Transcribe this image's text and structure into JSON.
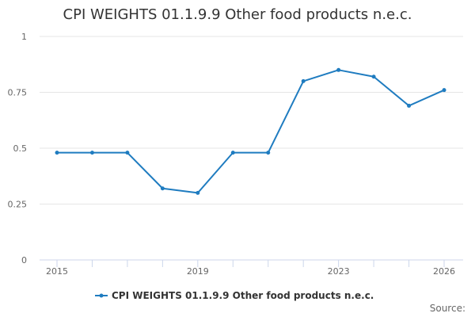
{
  "title": "CPI WEIGHTS 01.1.9.9 Other food products n.e.c.",
  "legend": {
    "label": "CPI WEIGHTS 01.1.9.9 Other food products n.e.c.",
    "color": "#1f7cc0"
  },
  "source_label": "Source:",
  "y_ticks": [
    "0",
    "0.25",
    "0.5",
    "0.75",
    "1"
  ],
  "x_tick_labels": [
    "2015",
    "2019",
    "2023",
    "2026"
  ],
  "chart_data": {
    "type": "line",
    "title": "CPI WEIGHTS 01.1.9.9 Other food products n.e.c.",
    "xlabel": "",
    "ylabel": "",
    "x": [
      2015,
      2016,
      2017,
      2018,
      2019,
      2020,
      2021,
      2022,
      2023,
      2024,
      2025,
      2026
    ],
    "series": [
      {
        "name": "CPI WEIGHTS 01.1.9.9 Other food products n.e.c.",
        "color": "#1f7cc0",
        "values": [
          0.48,
          0.48,
          0.48,
          0.32,
          0.3,
          0.48,
          0.48,
          0.8,
          0.85,
          0.82,
          0.69,
          0.76
        ]
      }
    ],
    "ylim": [
      0,
      1
    ],
    "y_ticks": [
      0,
      0.25,
      0.5,
      0.75,
      1
    ],
    "x_tick_labels": [
      "2015",
      "2019",
      "2023",
      "2026"
    ],
    "grid": true,
    "legend_position": "bottom"
  }
}
